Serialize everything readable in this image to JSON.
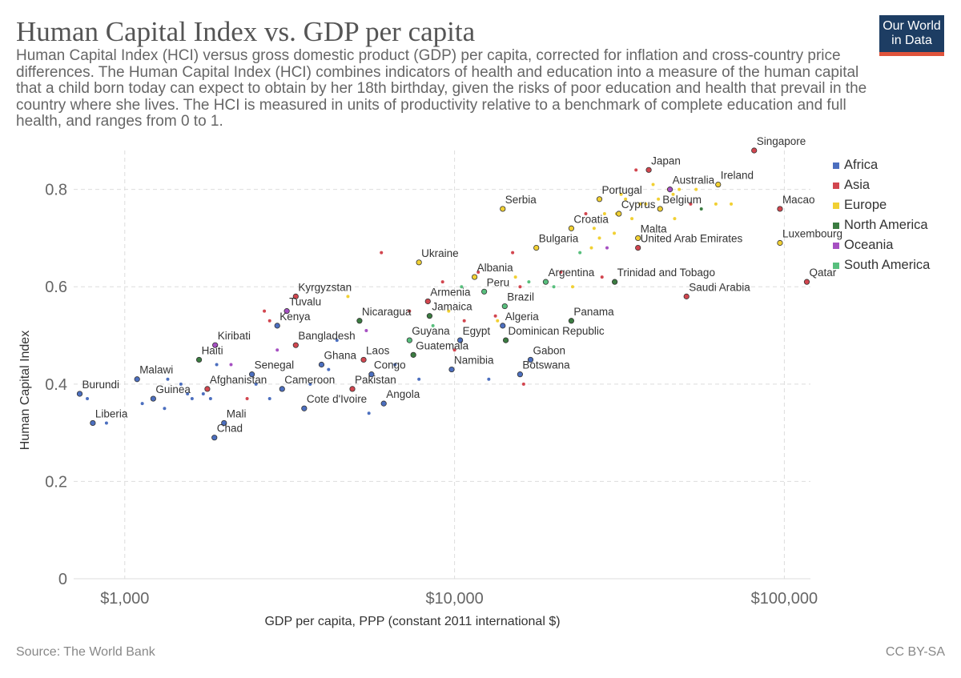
{
  "header": {
    "title": "Human Capital Index vs. GDP per capita",
    "subtitle": "Human Capital Index (HCI) versus gross domestic product (GDP) per capita, corrected for inflation and cross-country price differences. The Human Capital Index (HCI) combines indicators of health and education into a measure of the human capital that a child born today can expect to obtain by her 18th birthday, given the risks of poor education and health that prevail in the country where she lives. The HCI is measured in units of productivity relative to a benchmark of complete education and full health, and ranges from 0 to 1.",
    "logo_line1": "Our World",
    "logo_line2": "in Data"
  },
  "footer": {
    "source": "Source: The World Bank",
    "license": "CC BY-SA"
  },
  "colors": {
    "Africa": "#4c6fbf",
    "Asia": "#d2464f",
    "Europe": "#f1d033",
    "North America": "#3b7c41",
    "Oceania": "#a650c2",
    "South America": "#58bf7d"
  },
  "chart_data": {
    "type": "scatter",
    "xscale": "log",
    "xlim": [
      700,
      120000
    ],
    "ylim": [
      0,
      0.88
    ],
    "xticks": [
      {
        "v": 1000,
        "label": "$1,000"
      },
      {
        "v": 10000,
        "label": "$10,000"
      },
      {
        "v": 100000,
        "label": "$100,000"
      }
    ],
    "yticks": [
      {
        "v": 0,
        "label": "0"
      },
      {
        "v": 0.2,
        "label": "0.2"
      },
      {
        "v": 0.4,
        "label": "0.4"
      },
      {
        "v": 0.6,
        "label": "0.6"
      },
      {
        "v": 0.8,
        "label": "0.8"
      }
    ],
    "xlabel": "GDP per capita, PPP (constant 2011 international $)",
    "ylabel": "Human Capital Index",
    "legend": [
      "Africa",
      "Asia",
      "Europe",
      "North America",
      "Oceania",
      "South America"
    ],
    "points": [
      {
        "label": "Burundi",
        "x": 730,
        "y": 0.38,
        "region": "Africa"
      },
      {
        "label": "Liberia",
        "x": 800,
        "y": 0.32,
        "region": "Africa"
      },
      {
        "label": "Malawi",
        "x": 1090,
        "y": 0.41,
        "region": "Africa"
      },
      {
        "label": "Guinea",
        "x": 1220,
        "y": 0.37,
        "region": "Africa"
      },
      {
        "label": "Haiti",
        "x": 1680,
        "y": 0.45,
        "region": "North America"
      },
      {
        "label": "Afghanistan",
        "x": 1780,
        "y": 0.39,
        "region": "Asia"
      },
      {
        "label": "Kiribati",
        "x": 1880,
        "y": 0.48,
        "region": "Oceania"
      },
      {
        "label": "Chad",
        "x": 1870,
        "y": 0.29,
        "region": "Africa"
      },
      {
        "label": "Mali",
        "x": 2000,
        "y": 0.32,
        "region": "Africa"
      },
      {
        "label": "Senegal",
        "x": 2430,
        "y": 0.42,
        "region": "Africa"
      },
      {
        "label": "Kenya",
        "x": 2900,
        "y": 0.52,
        "region": "Africa"
      },
      {
        "label": "Tuvalu",
        "x": 3100,
        "y": 0.55,
        "region": "Oceania"
      },
      {
        "label": "Cameroon",
        "x": 3000,
        "y": 0.39,
        "region": "Africa"
      },
      {
        "label": "Kyrgyzstan",
        "x": 3300,
        "y": 0.58,
        "region": "Asia"
      },
      {
        "label": "Bangladesh",
        "x": 3300,
        "y": 0.48,
        "region": "Asia"
      },
      {
        "label": "Cote d'Ivoire",
        "x": 3500,
        "y": 0.35,
        "region": "Africa"
      },
      {
        "label": "Ghana",
        "x": 3950,
        "y": 0.44,
        "region": "Africa"
      },
      {
        "label": "Nicaragua",
        "x": 5150,
        "y": 0.53,
        "region": "North America"
      },
      {
        "label": "Pakistan",
        "x": 4900,
        "y": 0.39,
        "region": "Asia"
      },
      {
        "label": "Laos",
        "x": 5300,
        "y": 0.45,
        "region": "Asia"
      },
      {
        "label": "Congo",
        "x": 5600,
        "y": 0.42,
        "region": "Africa"
      },
      {
        "label": "Angola",
        "x": 6100,
        "y": 0.36,
        "region": "Africa"
      },
      {
        "label": "Ukraine",
        "x": 7800,
        "y": 0.65,
        "region": "Europe"
      },
      {
        "label": "Guyana",
        "x": 7300,
        "y": 0.49,
        "region": "South America"
      },
      {
        "label": "Guatemala",
        "x": 7500,
        "y": 0.46,
        "region": "North America"
      },
      {
        "label": "Armenia",
        "x": 8300,
        "y": 0.57,
        "region": "Asia"
      },
      {
        "label": "Jamaica",
        "x": 8400,
        "y": 0.54,
        "region": "North America"
      },
      {
        "label": "Namibia",
        "x": 9800,
        "y": 0.43,
        "region": "Africa"
      },
      {
        "label": "Egypt",
        "x": 10400,
        "y": 0.49,
        "region": "Africa"
      },
      {
        "label": "Albania",
        "x": 11500,
        "y": 0.62,
        "region": "Europe"
      },
      {
        "label": "Peru",
        "x": 12300,
        "y": 0.59,
        "region": "South America"
      },
      {
        "label": "Serbia",
        "x": 14000,
        "y": 0.76,
        "region": "Europe"
      },
      {
        "label": "Brazil",
        "x": 14200,
        "y": 0.56,
        "region": "South America"
      },
      {
        "label": "Algeria",
        "x": 14000,
        "y": 0.52,
        "region": "Africa"
      },
      {
        "label": "Dominican Republic",
        "x": 14300,
        "y": 0.49,
        "region": "North America"
      },
      {
        "label": "Botswana",
        "x": 15800,
        "y": 0.42,
        "region": "Africa"
      },
      {
        "label": "Gabon",
        "x": 17000,
        "y": 0.45,
        "region": "Africa"
      },
      {
        "label": "Bulgaria",
        "x": 17700,
        "y": 0.68,
        "region": "Europe"
      },
      {
        "label": "Argentina",
        "x": 18900,
        "y": 0.61,
        "region": "South America"
      },
      {
        "label": "Panama",
        "x": 22600,
        "y": 0.53,
        "region": "North America"
      },
      {
        "label": "Croatia",
        "x": 22600,
        "y": 0.72,
        "region": "Europe"
      },
      {
        "label": "Portugal",
        "x": 27500,
        "y": 0.78,
        "region": "Europe"
      },
      {
        "label": "Trinidad and Tobago",
        "x": 30600,
        "y": 0.61,
        "region": "North America"
      },
      {
        "label": "Cyprus",
        "x": 31500,
        "y": 0.75,
        "region": "Europe"
      },
      {
        "label": "Japan",
        "x": 38800,
        "y": 0.84,
        "region": "Asia"
      },
      {
        "label": "Malta",
        "x": 36000,
        "y": 0.7,
        "region": "Europe"
      },
      {
        "label": "United Arab Emirates",
        "x": 36000,
        "y": 0.68,
        "region": "Asia"
      },
      {
        "label": "Australia",
        "x": 45000,
        "y": 0.8,
        "region": "Oceania"
      },
      {
        "label": "Belgium",
        "x": 42000,
        "y": 0.76,
        "region": "Europe"
      },
      {
        "label": "Saudi Arabia",
        "x": 50500,
        "y": 0.58,
        "region": "Asia"
      },
      {
        "label": "Singapore",
        "x": 81000,
        "y": 0.88,
        "region": "Asia"
      },
      {
        "label": "Ireland",
        "x": 63000,
        "y": 0.81,
        "region": "Europe"
      },
      {
        "label": "Macao",
        "x": 97000,
        "y": 0.76,
        "region": "Asia"
      },
      {
        "label": "Luxembourg",
        "x": 97000,
        "y": 0.69,
        "region": "Europe"
      },
      {
        "label": "Qatar",
        "x": 117000,
        "y": 0.61,
        "region": "Asia"
      },
      {
        "label": "",
        "x": 770,
        "y": 0.37,
        "region": "Africa"
      },
      {
        "label": "",
        "x": 880,
        "y": 0.32,
        "region": "Africa"
      },
      {
        "label": "",
        "x": 1130,
        "y": 0.36,
        "region": "Africa"
      },
      {
        "label": "",
        "x": 1320,
        "y": 0.35,
        "region": "Africa"
      },
      {
        "label": "",
        "x": 1350,
        "y": 0.41,
        "region": "Africa"
      },
      {
        "label": "",
        "x": 1480,
        "y": 0.4,
        "region": "Africa"
      },
      {
        "label": "",
        "x": 1550,
        "y": 0.38,
        "region": "Africa"
      },
      {
        "label": "",
        "x": 1600,
        "y": 0.37,
        "region": "Africa"
      },
      {
        "label": "",
        "x": 1730,
        "y": 0.38,
        "region": "Africa"
      },
      {
        "label": "",
        "x": 1820,
        "y": 0.37,
        "region": "Africa"
      },
      {
        "label": "",
        "x": 1900,
        "y": 0.44,
        "region": "Africa"
      },
      {
        "label": "",
        "x": 2350,
        "y": 0.37,
        "region": "Asia"
      },
      {
        "label": "",
        "x": 2500,
        "y": 0.4,
        "region": "Africa"
      },
      {
        "label": "",
        "x": 2100,
        "y": 0.44,
        "region": "Oceania"
      },
      {
        "label": "",
        "x": 2650,
        "y": 0.55,
        "region": "Asia"
      },
      {
        "label": "",
        "x": 2750,
        "y": 0.53,
        "region": "Asia"
      },
      {
        "label": "",
        "x": 2750,
        "y": 0.37,
        "region": "Africa"
      },
      {
        "label": "",
        "x": 2900,
        "y": 0.47,
        "region": "Oceania"
      },
      {
        "label": "",
        "x": 3650,
        "y": 0.4,
        "region": "Africa"
      },
      {
        "label": "",
        "x": 4150,
        "y": 0.43,
        "region": "Africa"
      },
      {
        "label": "",
        "x": 4400,
        "y": 0.49,
        "region": "Africa"
      },
      {
        "label": "",
        "x": 4750,
        "y": 0.58,
        "region": "Europe"
      },
      {
        "label": "",
        "x": 5400,
        "y": 0.51,
        "region": "Oceania"
      },
      {
        "label": "",
        "x": 5500,
        "y": 0.34,
        "region": "Africa"
      },
      {
        "label": "",
        "x": 6000,
        "y": 0.67,
        "region": "Asia"
      },
      {
        "label": "",
        "x": 6600,
        "y": 0.44,
        "region": "Africa"
      },
      {
        "label": "",
        "x": 7300,
        "y": 0.55,
        "region": "Asia"
      },
      {
        "label": "",
        "x": 7800,
        "y": 0.41,
        "region": "Africa"
      },
      {
        "label": "",
        "x": 8600,
        "y": 0.52,
        "region": "South America"
      },
      {
        "label": "",
        "x": 9200,
        "y": 0.61,
        "region": "Asia"
      },
      {
        "label": "",
        "x": 9600,
        "y": 0.55,
        "region": "Europe"
      },
      {
        "label": "",
        "x": 10000,
        "y": 0.47,
        "region": "Asia"
      },
      {
        "label": "",
        "x": 10500,
        "y": 0.6,
        "region": "South America"
      },
      {
        "label": "",
        "x": 10700,
        "y": 0.53,
        "region": "Asia"
      },
      {
        "label": "",
        "x": 11800,
        "y": 0.63,
        "region": "Asia"
      },
      {
        "label": "",
        "x": 12700,
        "y": 0.41,
        "region": "Africa"
      },
      {
        "label": "",
        "x": 13300,
        "y": 0.54,
        "region": "Asia"
      },
      {
        "label": "",
        "x": 13500,
        "y": 0.53,
        "region": "Europe"
      },
      {
        "label": "",
        "x": 15000,
        "y": 0.67,
        "region": "Asia"
      },
      {
        "label": "",
        "x": 15300,
        "y": 0.62,
        "region": "Europe"
      },
      {
        "label": "",
        "x": 15800,
        "y": 0.6,
        "region": "Asia"
      },
      {
        "label": "",
        "x": 16200,
        "y": 0.4,
        "region": "Asia"
      },
      {
        "label": "",
        "x": 16800,
        "y": 0.61,
        "region": "South America"
      },
      {
        "label": "",
        "x": 20000,
        "y": 0.6,
        "region": "South America"
      },
      {
        "label": "",
        "x": 21000,
        "y": 0.63,
        "region": "Asia"
      },
      {
        "label": "",
        "x": 22800,
        "y": 0.6,
        "region": "Europe"
      },
      {
        "label": "",
        "x": 24000,
        "y": 0.67,
        "region": "South America"
      },
      {
        "label": "",
        "x": 25000,
        "y": 0.75,
        "region": "Asia"
      },
      {
        "label": "",
        "x": 26000,
        "y": 0.68,
        "region": "Europe"
      },
      {
        "label": "",
        "x": 26500,
        "y": 0.72,
        "region": "Europe"
      },
      {
        "label": "",
        "x": 27500,
        "y": 0.7,
        "region": "Europe"
      },
      {
        "label": "",
        "x": 28000,
        "y": 0.62,
        "region": "Asia"
      },
      {
        "label": "",
        "x": 28500,
        "y": 0.75,
        "region": "Europe"
      },
      {
        "label": "",
        "x": 29000,
        "y": 0.68,
        "region": "Oceania"
      },
      {
        "label": "",
        "x": 30500,
        "y": 0.71,
        "region": "Europe"
      },
      {
        "label": "",
        "x": 31000,
        "y": 0.75,
        "region": "Europe"
      },
      {
        "label": "",
        "x": 32000,
        "y": 0.79,
        "region": "Europe"
      },
      {
        "label": "",
        "x": 33000,
        "y": 0.78,
        "region": "Europe"
      },
      {
        "label": "",
        "x": 34500,
        "y": 0.74,
        "region": "Europe"
      },
      {
        "label": "",
        "x": 35500,
        "y": 0.84,
        "region": "Asia"
      },
      {
        "label": "",
        "x": 36500,
        "y": 0.77,
        "region": "Europe"
      },
      {
        "label": "",
        "x": 38000,
        "y": 0.77,
        "region": "Europe"
      },
      {
        "label": "",
        "x": 40000,
        "y": 0.81,
        "region": "Europe"
      },
      {
        "label": "",
        "x": 41500,
        "y": 0.78,
        "region": "Europe"
      },
      {
        "label": "",
        "x": 44500,
        "y": 0.8,
        "region": "Europe"
      },
      {
        "label": "",
        "x": 46000,
        "y": 0.79,
        "region": "Europe"
      },
      {
        "label": "",
        "x": 46500,
        "y": 0.74,
        "region": "Europe"
      },
      {
        "label": "",
        "x": 48000,
        "y": 0.8,
        "region": "Europe"
      },
      {
        "label": "",
        "x": 52000,
        "y": 0.77,
        "region": "Asia"
      },
      {
        "label": "",
        "x": 54000,
        "y": 0.8,
        "region": "Europe"
      },
      {
        "label": "",
        "x": 56000,
        "y": 0.76,
        "region": "North America"
      },
      {
        "label": "",
        "x": 62000,
        "y": 0.77,
        "region": "Europe"
      },
      {
        "label": "",
        "x": 69000,
        "y": 0.77,
        "region": "Europe"
      }
    ]
  }
}
